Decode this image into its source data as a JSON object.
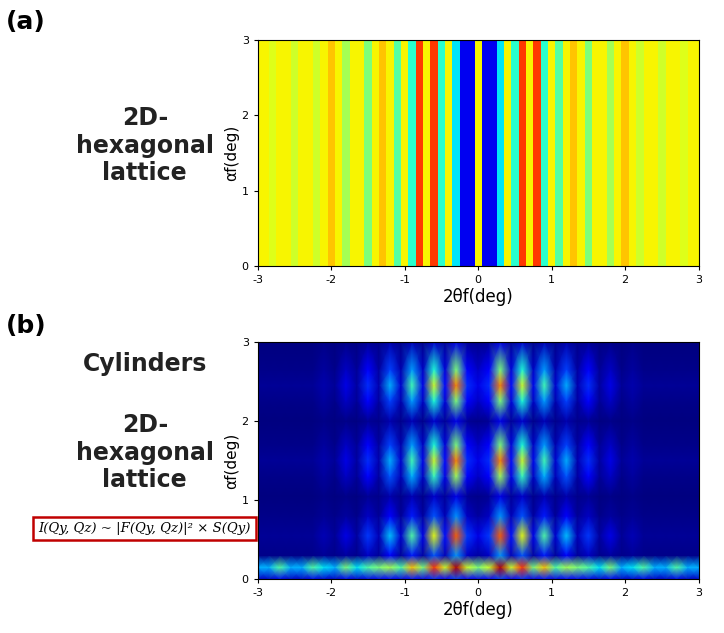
{
  "chart_data": [
    {
      "type": "heatmap",
      "panel": "(a)",
      "annotations": [
        "2D-\nhexagonal\nlattice"
      ],
      "x_label": "2θf(deg)",
      "y_label": "αf(deg)",
      "xlim": [
        -3,
        3
      ],
      "ylim": [
        0,
        3
      ],
      "xticks": [
        -3,
        -2,
        -1,
        0,
        1,
        2,
        3
      ],
      "yticks": [
        0,
        1,
        2,
        3
      ],
      "value_range": [
        0,
        1
      ],
      "x": [
        -3.0,
        -2.9,
        -2.8,
        -2.7,
        -2.6,
        -2.5,
        -2.4,
        -2.3,
        -2.2,
        -2.1,
        -2.0,
        -1.9,
        -1.8,
        -1.7,
        -1.6,
        -1.5,
        -1.4,
        -1.3,
        -1.2,
        -1.1,
        -1.0,
        -0.9,
        -0.8,
        -0.7,
        -0.6,
        -0.5,
        -0.4,
        -0.3,
        -0.2,
        -0.1,
        0.0,
        0.1,
        0.2,
        0.3,
        0.4,
        0.5,
        0.6,
        0.7,
        0.8,
        0.9,
        1.0,
        1.1,
        1.2,
        1.3,
        1.4,
        1.5,
        1.6,
        1.7,
        1.8,
        1.9,
        2.0,
        2.1,
        2.2,
        2.3,
        2.4,
        2.5,
        2.6,
        2.7,
        2.8,
        2.9,
        3.0
      ],
      "y": [
        0,
        3
      ],
      "cells": [
        [
          0.65,
          0.65,
          0.62,
          0.65,
          0.65,
          0.6,
          0.65,
          0.65,
          0.6,
          0.65,
          0.7,
          0.65,
          0.55,
          0.65,
          0.65,
          0.5,
          0.65,
          0.7,
          0.65,
          0.45,
          0.65,
          0.4,
          0.85,
          0.65,
          0.85,
          0.4,
          0.65,
          0.35,
          0.1,
          0.1,
          0.65,
          0.1,
          0.1,
          0.35,
          0.65,
          0.4,
          0.85,
          0.65,
          0.85,
          0.4,
          0.65,
          0.45,
          0.65,
          0.7,
          0.65,
          0.5,
          0.65,
          0.65,
          0.55,
          0.65,
          0.7,
          0.65,
          0.6,
          0.65,
          0.65,
          0.6,
          0.65,
          0.65,
          0.62,
          0.65,
          0.65
        ],
        [
          0.65,
          0.65,
          0.62,
          0.65,
          0.65,
          0.6,
          0.65,
          0.65,
          0.6,
          0.65,
          0.7,
          0.65,
          0.55,
          0.65,
          0.65,
          0.5,
          0.65,
          0.7,
          0.65,
          0.45,
          0.65,
          0.4,
          0.85,
          0.65,
          0.85,
          0.4,
          0.65,
          0.35,
          0.1,
          0.1,
          0.65,
          0.1,
          0.1,
          0.35,
          0.65,
          0.4,
          0.85,
          0.65,
          0.85,
          0.4,
          0.65,
          0.45,
          0.65,
          0.7,
          0.65,
          0.5,
          0.65,
          0.65,
          0.55,
          0.65,
          0.7,
          0.65,
          0.6,
          0.65,
          0.65,
          0.6,
          0.65,
          0.65,
          0.62,
          0.65,
          0.65
        ]
      ]
    },
    {
      "type": "heatmap",
      "panel": "(b)",
      "annotations": [
        "Cylinders",
        "2D-\nhexagonal\nlattice"
      ],
      "formula": "I(Qy, Qz) ~ |F(Qy, Qz)|² × S(Qy)",
      "x_label": "2θf(deg)",
      "y_label": "αf(deg)",
      "xlim": [
        -3,
        3
      ],
      "ylim": [
        0,
        3
      ],
      "xticks": [
        -3,
        -2,
        -1,
        0,
        1,
        2,
        3
      ],
      "yticks": [
        0,
        1,
        2,
        3
      ],
      "value_range": [
        0,
        1
      ],
      "x": [
        -3.0,
        -2.85,
        -2.7,
        -2.55,
        -2.4,
        -2.25,
        -2.1,
        -1.95,
        -1.8,
        -1.65,
        -1.5,
        -1.35,
        -1.2,
        -1.05,
        -0.9,
        -0.75,
        -0.6,
        -0.45,
        -0.3,
        -0.15,
        0.0,
        0.15,
        0.3,
        0.45,
        0.6,
        0.75,
        0.9,
        1.05,
        1.2,
        1.35,
        1.5,
        1.65,
        1.8,
        1.95,
        2.1,
        2.25,
        2.4,
        2.55,
        2.7,
        2.85,
        3.0
      ],
      "y": [
        0.0,
        0.15,
        0.3,
        0.55,
        0.8,
        1.05,
        1.3,
        1.5,
        1.7,
        2.0,
        2.25,
        2.45,
        2.65,
        3.0
      ],
      "cells": [
        [
          0.06,
          0.06,
          0.09,
          0.06,
          0.06,
          0.09,
          0.07,
          0.06,
          0.1,
          0.07,
          0.09,
          0.1,
          0.11,
          0.09,
          0.14,
          0.1,
          0.17,
          0.12,
          0.19,
          0.12,
          0.1,
          0.12,
          0.19,
          0.12,
          0.17,
          0.1,
          0.14,
          0.09,
          0.11,
          0.1,
          0.09,
          0.07,
          0.1,
          0.06,
          0.07,
          0.09,
          0.06,
          0.06,
          0.09,
          0.06,
          0.06
        ],
        [
          0.3,
          0.3,
          0.45,
          0.3,
          0.3,
          0.45,
          0.35,
          0.3,
          0.5,
          0.35,
          0.45,
          0.5,
          0.55,
          0.45,
          0.7,
          0.5,
          0.85,
          0.6,
          0.95,
          0.6,
          0.5,
          0.6,
          0.95,
          0.6,
          0.85,
          0.5,
          0.7,
          0.45,
          0.55,
          0.5,
          0.45,
          0.35,
          0.5,
          0.3,
          0.35,
          0.45,
          0.3,
          0.3,
          0.45,
          0.3,
          0.3
        ],
        [
          0.01,
          0.01,
          0.01,
          0.01,
          0.01,
          0.01,
          0.02,
          0.01,
          0.03,
          0.01,
          0.06,
          0.02,
          0.11,
          0.02,
          0.15,
          0.03,
          0.21,
          0.05,
          0.27,
          0.06,
          0.03,
          0.06,
          0.27,
          0.05,
          0.21,
          0.03,
          0.15,
          0.02,
          0.11,
          0.02,
          0.06,
          0.01,
          0.03,
          0.01,
          0.02,
          0.01,
          0.01,
          0.01,
          0.01,
          0.01,
          0.01
        ],
        [
          0.02,
          0.02,
          0.02,
          0.02,
          0.02,
          0.02,
          0.05,
          0.02,
          0.09,
          0.03,
          0.18,
          0.05,
          0.32,
          0.07,
          0.45,
          0.09,
          0.63,
          0.14,
          0.81,
          0.18,
          0.09,
          0.18,
          0.81,
          0.14,
          0.63,
          0.09,
          0.45,
          0.07,
          0.32,
          0.05,
          0.18,
          0.03,
          0.09,
          0.02,
          0.05,
          0.02,
          0.02,
          0.02,
          0.02,
          0.02,
          0.02
        ],
        [
          0.01,
          0.01,
          0.01,
          0.01,
          0.01,
          0.01,
          0.02,
          0.01,
          0.03,
          0.01,
          0.06,
          0.02,
          0.11,
          0.02,
          0.15,
          0.03,
          0.21,
          0.05,
          0.27,
          0.06,
          0.03,
          0.06,
          0.27,
          0.05,
          0.21,
          0.03,
          0.15,
          0.02,
          0.11,
          0.02,
          0.06,
          0.01,
          0.03,
          0.01,
          0.02,
          0.01,
          0.01,
          0.01,
          0.01,
          0.01,
          0.01
        ],
        [
          0,
          0,
          0,
          0,
          0,
          0,
          0.01,
          0,
          0.01,
          0,
          0.02,
          0.01,
          0.04,
          0.01,
          0.05,
          0.01,
          0.07,
          0.02,
          0.09,
          0.02,
          0.01,
          0.02,
          0.09,
          0.02,
          0.07,
          0.01,
          0.05,
          0.01,
          0.04,
          0.01,
          0.02,
          0,
          0.01,
          0,
          0.01,
          0,
          0,
          0,
          0,
          0,
          0
        ],
        [
          0.01,
          0.01,
          0.01,
          0.01,
          0.01,
          0.01,
          0.03,
          0.01,
          0.06,
          0.02,
          0.12,
          0.03,
          0.21,
          0.05,
          0.3,
          0.06,
          0.42,
          0.09,
          0.54,
          0.12,
          0.06,
          0.12,
          0.54,
          0.09,
          0.42,
          0.06,
          0.3,
          0.05,
          0.21,
          0.03,
          0.12,
          0.02,
          0.06,
          0.01,
          0.03,
          0.01,
          0.01,
          0.01,
          0.01,
          0.01,
          0.01
        ],
        [
          0.02,
          0.02,
          0.02,
          0.02,
          0.02,
          0.02,
          0.04,
          0.02,
          0.09,
          0.03,
          0.17,
          0.04,
          0.3,
          0.07,
          0.43,
          0.09,
          0.6,
          0.13,
          0.77,
          0.17,
          0.09,
          0.17,
          0.77,
          0.13,
          0.6,
          0.09,
          0.43,
          0.07,
          0.3,
          0.04,
          0.17,
          0.03,
          0.09,
          0.02,
          0.04,
          0.02,
          0.02,
          0.02,
          0.02,
          0.02,
          0.02
        ],
        [
          0.01,
          0.01,
          0.01,
          0.01,
          0.01,
          0.01,
          0.03,
          0.01,
          0.06,
          0.02,
          0.11,
          0.03,
          0.19,
          0.04,
          0.28,
          0.06,
          0.39,
          0.08,
          0.5,
          0.11,
          0.06,
          0.11,
          0.5,
          0.08,
          0.39,
          0.06,
          0.28,
          0.04,
          0.19,
          0.03,
          0.11,
          0.02,
          0.06,
          0.01,
          0.03,
          0.01,
          0.01,
          0.01,
          0.01,
          0.01,
          0.01
        ],
        [
          0,
          0,
          0,
          0,
          0,
          0,
          0.01,
          0,
          0.01,
          0,
          0.02,
          0.01,
          0.04,
          0.01,
          0.05,
          0.01,
          0.07,
          0.02,
          0.09,
          0.02,
          0.01,
          0.02,
          0.09,
          0.02,
          0.07,
          0.01,
          0.05,
          0.01,
          0.04,
          0.01,
          0.02,
          0,
          0.01,
          0,
          0.01,
          0,
          0,
          0,
          0,
          0,
          0
        ],
        [
          0.01,
          0.01,
          0.01,
          0.01,
          0.01,
          0.01,
          0.03,
          0.01,
          0.06,
          0.02,
          0.11,
          0.03,
          0.19,
          0.04,
          0.28,
          0.06,
          0.39,
          0.08,
          0.5,
          0.11,
          0.06,
          0.11,
          0.5,
          0.08,
          0.39,
          0.06,
          0.28,
          0.04,
          0.19,
          0.03,
          0.11,
          0.02,
          0.06,
          0.01,
          0.03,
          0.01,
          0.01,
          0.01,
          0.01,
          0.01,
          0.01
        ],
        [
          0.02,
          0.02,
          0.02,
          0.02,
          0.02,
          0.02,
          0.04,
          0.02,
          0.09,
          0.03,
          0.17,
          0.04,
          0.3,
          0.07,
          0.43,
          0.09,
          0.6,
          0.13,
          0.77,
          0.17,
          0.09,
          0.17,
          0.77,
          0.13,
          0.6,
          0.09,
          0.43,
          0.07,
          0.3,
          0.04,
          0.17,
          0.03,
          0.09,
          0.02,
          0.04,
          0.02,
          0.02,
          0.02,
          0.02,
          0.02,
          0.02
        ],
        [
          0.01,
          0.01,
          0.01,
          0.01,
          0.01,
          0.01,
          0.03,
          0.01,
          0.06,
          0.02,
          0.11,
          0.03,
          0.19,
          0.04,
          0.28,
          0.06,
          0.39,
          0.08,
          0.5,
          0.11,
          0.06,
          0.11,
          0.5,
          0.08,
          0.39,
          0.06,
          0.28,
          0.04,
          0.19,
          0.03,
          0.11,
          0.02,
          0.06,
          0.01,
          0.03,
          0.01,
          0.01,
          0.01,
          0.01,
          0.01,
          0.01
        ],
        [
          0,
          0,
          0,
          0,
          0,
          0,
          0.01,
          0,
          0.01,
          0,
          0.02,
          0.01,
          0.04,
          0.01,
          0.05,
          0.01,
          0.07,
          0.02,
          0.09,
          0.02,
          0.01,
          0.02,
          0.09,
          0.02,
          0.07,
          0.01,
          0.05,
          0.01,
          0.04,
          0.01,
          0.02,
          0,
          0.01,
          0,
          0.01,
          0,
          0,
          0,
          0,
          0,
          0
        ]
      ]
    }
  ]
}
